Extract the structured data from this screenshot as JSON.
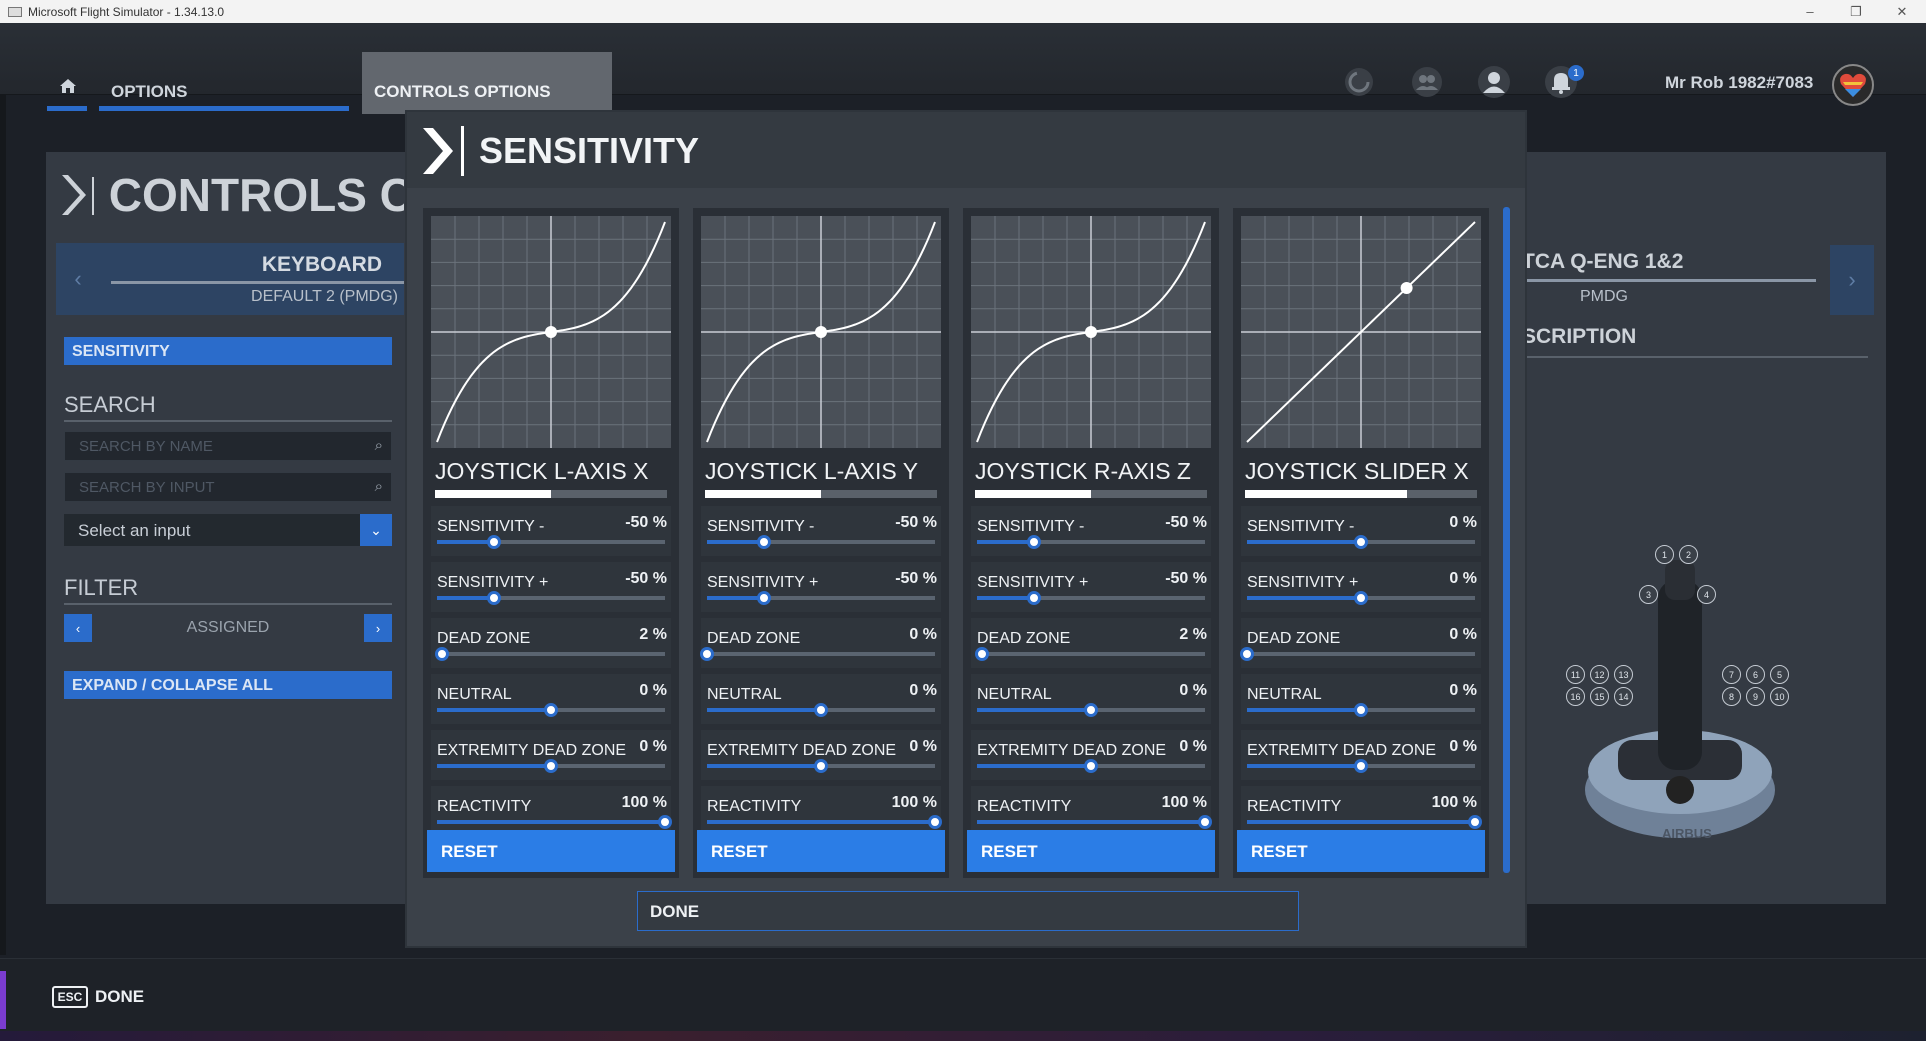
{
  "window": {
    "title": "Microsoft Flight Simulator - 1.34.13.0",
    "controls": [
      "–",
      "❐",
      "✕"
    ]
  },
  "topbar": {
    "home_icon": "home-icon",
    "options_label": "OPTIONS",
    "controls_options_label": "CONTROLS OPTIONS",
    "notification_count": "1",
    "username": "Mr Rob 1982#7083",
    "icons": [
      "activity-icon",
      "friends-icon",
      "profile-icon",
      "bell-icon"
    ]
  },
  "background": {
    "heading": "CONTROLS C",
    "keyboard": {
      "title": "KEYBOARD",
      "profile": "DEFAULT 2 (PMDG)"
    },
    "sensitivity_button": "SENSITIVITY",
    "search_title": "SEARCH",
    "search_by_name_placeholder": "SEARCH BY NAME",
    "search_by_input_placeholder": "SEARCH BY INPUT",
    "select_input": "Select an input",
    "filter_title": "FILTER",
    "filter_value": "ASSIGNED",
    "expand_collapse": "EXPAND / COLLAPSE ALL",
    "right_device": {
      "title": "TCA Q-ENG 1&2",
      "profile": "PMDG"
    },
    "description_title": "SCRIPTION",
    "joystick_brand": "AIRBUS",
    "button_numbers_left": [
      "11",
      "12",
      "13",
      "16",
      "15",
      "14"
    ],
    "button_numbers_right": [
      "7",
      "6",
      "5",
      "8",
      "9",
      "10"
    ],
    "button_numbers_top": [
      "1",
      "2",
      "3",
      "4"
    ]
  },
  "modal": {
    "title": "SENSITIVITY",
    "done_label": "DONE",
    "cards": [
      {
        "title": "JOYSTICK L-AXIS X",
        "axis_fill": 0.5,
        "curve": "s-curve",
        "rows": [
          {
            "label": "SENSITIVITY -",
            "value": "-50 %",
            "level": 0.25
          },
          {
            "label": "SENSITIVITY +",
            "value": "-50 %",
            "level": 0.25
          },
          {
            "label": "DEAD ZONE",
            "value": "2 %",
            "level": 0.02
          },
          {
            "label": "NEUTRAL",
            "value": "0 %",
            "level": 0.5
          },
          {
            "label": "EXTREMITY DEAD ZONE",
            "value": "0 %",
            "level": 0.5
          },
          {
            "label": "REACTIVITY",
            "value": "100 %",
            "level": 1.0
          }
        ],
        "reset_label": "RESET"
      },
      {
        "title": "JOYSTICK L-AXIS Y",
        "axis_fill": 0.5,
        "curve": "s-curve",
        "rows": [
          {
            "label": "SENSITIVITY -",
            "value": "-50 %",
            "level": 0.25
          },
          {
            "label": "SENSITIVITY +",
            "value": "-50 %",
            "level": 0.25
          },
          {
            "label": "DEAD ZONE",
            "value": "0 %",
            "level": 0.0
          },
          {
            "label": "NEUTRAL",
            "value": "0 %",
            "level": 0.5
          },
          {
            "label": "EXTREMITY DEAD ZONE",
            "value": "0 %",
            "level": 0.5
          },
          {
            "label": "REACTIVITY",
            "value": "100 %",
            "level": 1.0
          }
        ],
        "reset_label": "RESET"
      },
      {
        "title": "JOYSTICK R-AXIS Z",
        "axis_fill": 0.5,
        "curve": "s-curve",
        "rows": [
          {
            "label": "SENSITIVITY -",
            "value": "-50 %",
            "level": 0.25
          },
          {
            "label": "SENSITIVITY +",
            "value": "-50 %",
            "level": 0.25
          },
          {
            "label": "DEAD ZONE",
            "value": "2 %",
            "level": 0.02
          },
          {
            "label": "NEUTRAL",
            "value": "0 %",
            "level": 0.5
          },
          {
            "label": "EXTREMITY DEAD ZONE",
            "value": "0 %",
            "level": 0.5
          },
          {
            "label": "REACTIVITY",
            "value": "100 %",
            "level": 1.0
          }
        ],
        "reset_label": "RESET"
      },
      {
        "title": "JOYSTICK SLIDER X",
        "axis_fill": 0.7,
        "curve": "linear",
        "rows": [
          {
            "label": "SENSITIVITY -",
            "value": "0 %",
            "level": 0.5
          },
          {
            "label": "SENSITIVITY +",
            "value": "0 %",
            "level": 0.5
          },
          {
            "label": "DEAD ZONE",
            "value": "0 %",
            "level": 0.0
          },
          {
            "label": "NEUTRAL",
            "value": "0 %",
            "level": 0.5
          },
          {
            "label": "EXTREMITY DEAD ZONE",
            "value": "0 %",
            "level": 0.5
          },
          {
            "label": "REACTIVITY",
            "value": "100 %",
            "level": 1.0
          }
        ],
        "reset_label": "RESET"
      }
    ]
  },
  "bottom": {
    "esc_label": "ESC",
    "done_label": "DONE"
  },
  "colors": {
    "accent": "#2b6ccb",
    "reset": "#2b7de6",
    "esc_accent": "#7b3ccf"
  }
}
